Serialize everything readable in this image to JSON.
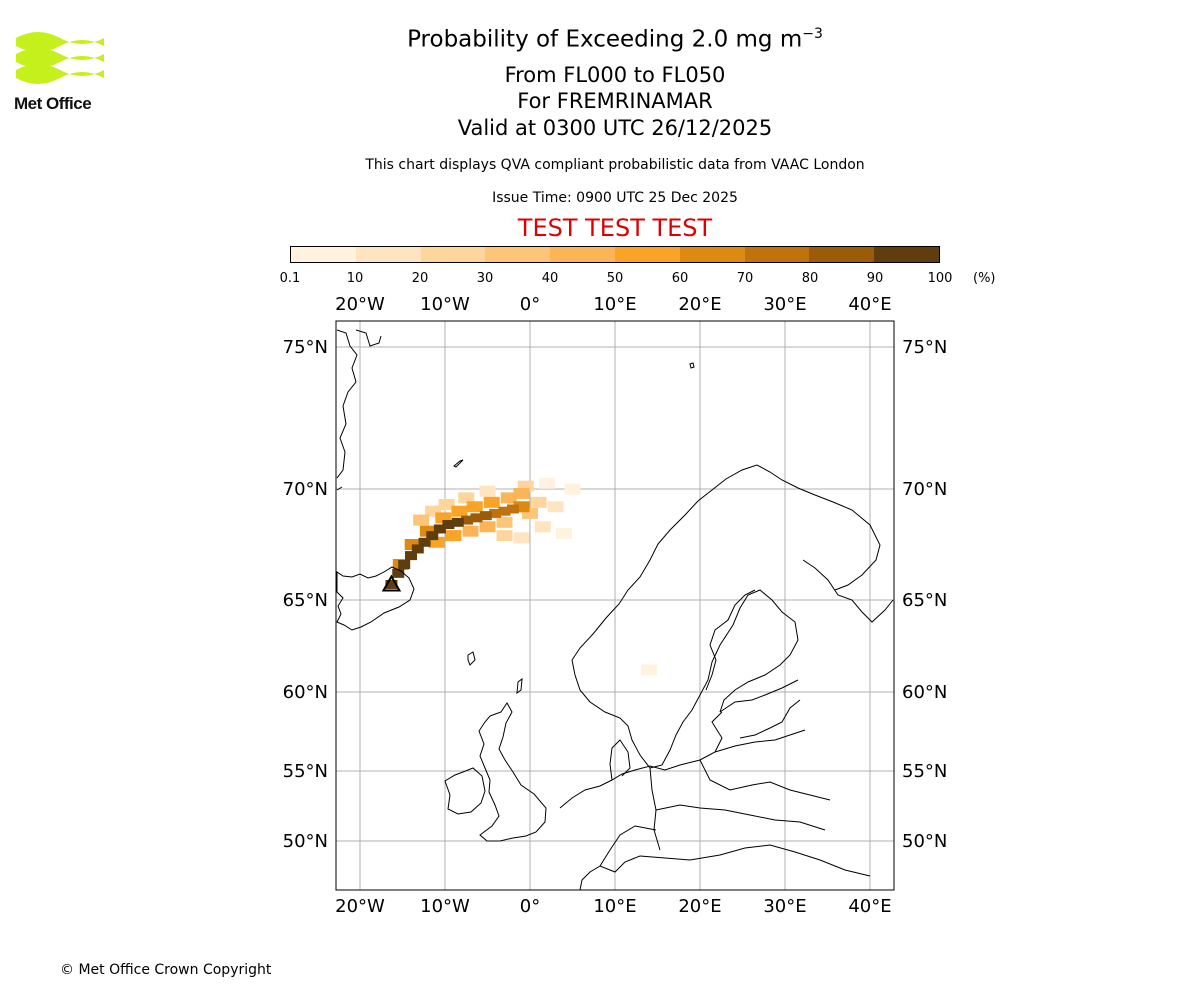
{
  "logo": {
    "name": "Met Office"
  },
  "header": {
    "title": "Probability of Exceeding 2.0 mg m",
    "title_sup": "−3",
    "range": "From FL000 to FL050",
    "for": "For FREMRINAMAR",
    "valid": "Valid at 0300 UTC 26/12/2025",
    "description": "This chart displays QVA compliant probabilistic data from VAAC London",
    "issue_time": "Issue Time: 0900 UTC 25 Dec 2025",
    "test_banner": "TEST TEST TEST",
    "test_color": "#dd0000"
  },
  "colorbar": {
    "ticks": [
      "0.1",
      "10",
      "20",
      "30",
      "40",
      "50",
      "60",
      "70",
      "80",
      "90",
      "100"
    ],
    "unit": "(%)",
    "colors": [
      "#fff3e0",
      "#fee4c0",
      "#fdd59d",
      "#fcc57a",
      "#fbb556",
      "#f9a426",
      "#dd8a12",
      "#c0730c",
      "#9a5c09",
      "#5f3d0c"
    ]
  },
  "map": {
    "lon_ticks": [
      "20°W",
      "10°W",
      "0°",
      "10°E",
      "20°E",
      "30°E",
      "40°E"
    ],
    "lat_ticks": [
      "75°N",
      "70°N",
      "65°N",
      "60°N",
      "55°N",
      "50°N"
    ],
    "lon_values": [
      -20,
      -10,
      0,
      10,
      20,
      30,
      40
    ],
    "lat_values": [
      75,
      70,
      65,
      60,
      55,
      50
    ],
    "extent": {
      "lon_min": -22.5,
      "lon_max": 43,
      "lat_min": 47.2,
      "lat_max": 75.9
    },
    "plume_description": "ash plume extending from southeast Iceland northeast toward 0°E",
    "plume_cells": [
      {
        "lon": -16.3,
        "lat": 65.7,
        "level": 9
      },
      {
        "lon": -15.5,
        "lat": 66.2,
        "level": 9
      },
      {
        "lon": -14.8,
        "lat": 66.6,
        "level": 9
      },
      {
        "lon": -14.0,
        "lat": 67.0,
        "level": 9
      },
      {
        "lon": -13.2,
        "lat": 67.3,
        "level": 9
      },
      {
        "lon": -12.4,
        "lat": 67.6,
        "level": 9
      },
      {
        "lon": -11.5,
        "lat": 67.9,
        "level": 9
      },
      {
        "lon": -10.6,
        "lat": 68.2,
        "level": 9
      },
      {
        "lon": -9.6,
        "lat": 68.4,
        "level": 9
      },
      {
        "lon": -8.5,
        "lat": 68.5,
        "level": 9
      },
      {
        "lon": -7.4,
        "lat": 68.6,
        "level": 8
      },
      {
        "lon": -6.3,
        "lat": 68.7,
        "level": 8
      },
      {
        "lon": -5.2,
        "lat": 68.8,
        "level": 8
      },
      {
        "lon": -4.1,
        "lat": 68.9,
        "level": 7
      },
      {
        "lon": -3.0,
        "lat": 69.0,
        "level": 7
      },
      {
        "lon": -2.0,
        "lat": 69.1,
        "level": 7
      },
      {
        "lon": -1.0,
        "lat": 69.2,
        "level": 6
      },
      {
        "lon": -15.2,
        "lat": 66.6,
        "level": 6
      },
      {
        "lon": -13.8,
        "lat": 67.5,
        "level": 6
      },
      {
        "lon": -12.0,
        "lat": 68.1,
        "level": 6
      },
      {
        "lon": -10.2,
        "lat": 68.7,
        "level": 5
      },
      {
        "lon": -8.3,
        "lat": 69.0,
        "level": 5
      },
      {
        "lon": -6.5,
        "lat": 69.2,
        "level": 5
      },
      {
        "lon": -4.5,
        "lat": 69.4,
        "level": 5
      },
      {
        "lon": -2.5,
        "lat": 69.6,
        "level": 4
      },
      {
        "lon": -1.0,
        "lat": 69.8,
        "level": 4
      },
      {
        "lon": -11.0,
        "lat": 67.6,
        "level": 5
      },
      {
        "lon": -9.0,
        "lat": 67.9,
        "level": 5
      },
      {
        "lon": -7.0,
        "lat": 68.1,
        "level": 4
      },
      {
        "lon": -5.0,
        "lat": 68.3,
        "level": 4
      },
      {
        "lon": -3.0,
        "lat": 68.5,
        "level": 3
      },
      {
        "lon": 0.0,
        "lat": 68.9,
        "level": 3
      },
      {
        "lon": 1.0,
        "lat": 69.4,
        "level": 2
      },
      {
        "lon": -0.5,
        "lat": 70.1,
        "level": 2
      },
      {
        "lon": -12.8,
        "lat": 68.6,
        "level": 3
      },
      {
        "lon": -11.4,
        "lat": 69.0,
        "level": 2
      },
      {
        "lon": -9.8,
        "lat": 69.3,
        "level": 2
      },
      {
        "lon": -7.5,
        "lat": 69.6,
        "level": 2
      },
      {
        "lon": -5.0,
        "lat": 69.9,
        "level": 1
      },
      {
        "lon": -3.0,
        "lat": 67.9,
        "level": 2
      },
      {
        "lon": -1.0,
        "lat": 67.8,
        "level": 1
      },
      {
        "lon": 1.5,
        "lat": 68.3,
        "level": 1
      },
      {
        "lon": 3.0,
        "lat": 69.2,
        "level": 1
      },
      {
        "lon": 2.0,
        "lat": 70.2,
        "level": 0
      },
      {
        "lon": 5.0,
        "lat": 70.0,
        "level": 0
      },
      {
        "lon": 4.0,
        "lat": 68.0,
        "level": 0
      },
      {
        "lon": 14.0,
        "lat": 61.2,
        "level": 0
      }
    ]
  },
  "footer": {
    "copyright": "© Met Office Crown Copyright"
  }
}
